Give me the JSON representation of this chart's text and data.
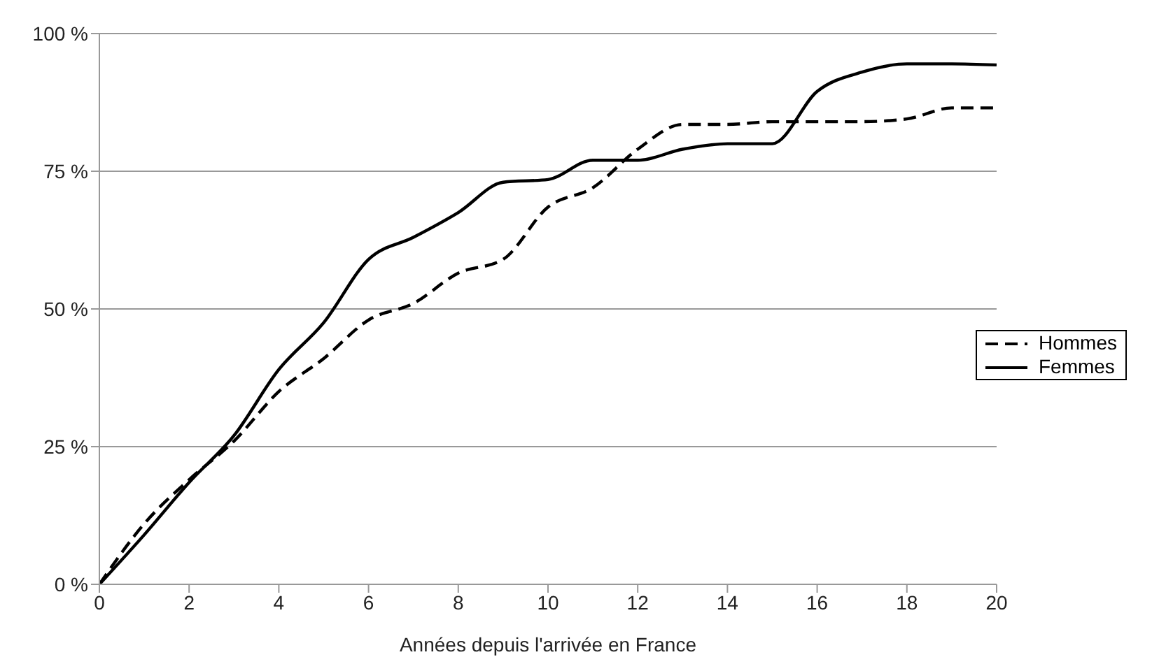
{
  "chart_data": {
    "type": "line",
    "xlabel": "Années depuis l'arrivée en France",
    "x": [
      0,
      1,
      2,
      3,
      4,
      5,
      6,
      7,
      8,
      9,
      10,
      11,
      12,
      13,
      14,
      15,
      16,
      17,
      18,
      19,
      20
    ],
    "series": [
      {
        "name": "Hommes",
        "color": "#000000",
        "line_style": "dashed",
        "values": [
          0,
          11,
          19,
          26,
          35,
          41,
          48,
          51,
          56.5,
          59,
          68.5,
          72,
          79,
          83.5,
          83.5,
          84,
          84,
          84,
          84.5,
          86.5,
          86.5
        ]
      },
      {
        "name": "Femmes",
        "color": "#000000",
        "line_style": "solid",
        "values": [
          0,
          9,
          18.5,
          27,
          39,
          47.5,
          59,
          63,
          67.5,
          73,
          73.5,
          77,
          77,
          79,
          80,
          80,
          89.5,
          93,
          94.5,
          94.5,
          94.3
        ]
      }
    ],
    "xlim": [
      0,
      20
    ],
    "xticks": [
      0,
      2,
      4,
      6,
      8,
      10,
      12,
      14,
      16,
      18,
      20
    ],
    "ylim": [
      0,
      100
    ],
    "yticks": [
      {
        "value": 0,
        "label": "0 %"
      },
      {
        "value": 25,
        "label": "25 %"
      },
      {
        "value": 50,
        "label": "50 %"
      },
      {
        "value": 75,
        "label": "75 %"
      },
      {
        "value": 100,
        "label": "100 %"
      }
    ],
    "grid": "y",
    "legend": "right",
    "marker": "none"
  }
}
